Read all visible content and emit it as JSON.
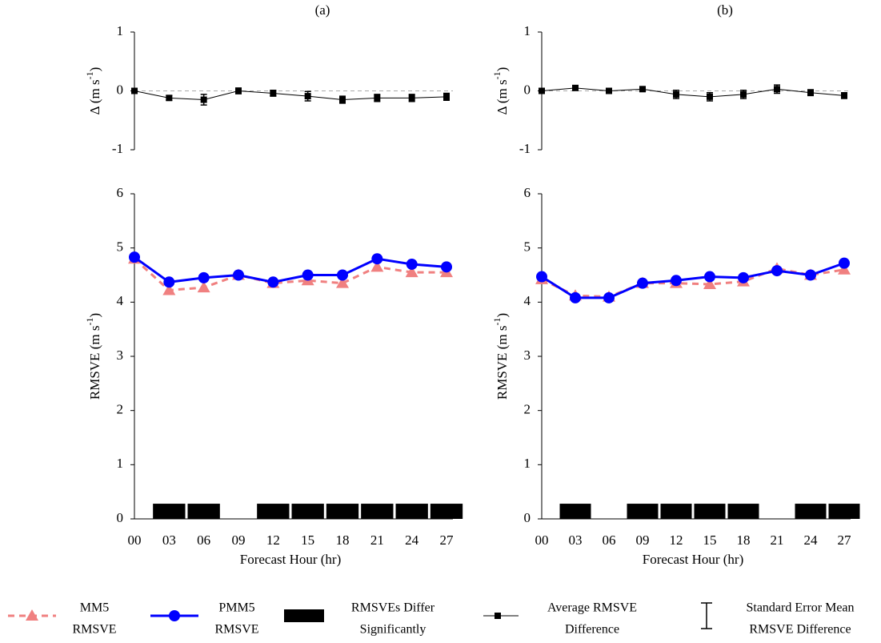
{
  "chart_data": [
    {
      "type": "line",
      "title": "(a)",
      "ylabel": "Δ (m s",
      "ylabel_sup": "-1",
      "ylabel_end": ")",
      "ylim": [
        -1,
        1
      ],
      "yticks": [
        -1,
        0,
        1
      ],
      "zero_line": true,
      "series": [
        {
          "color": "#000000",
          "marker": "square",
          "values": [
            0,
            -0.12,
            -0.15,
            0,
            -0.04,
            -0.09,
            -0.15,
            -0.12,
            -0.12,
            -0.1
          ],
          "errors": [
            0.02,
            0.04,
            0.09,
            0.05,
            0.05,
            0.08,
            0.06,
            0.06,
            0.06,
            0.06
          ]
        }
      ]
    },
    {
      "type": "line",
      "xlabel": "Forecast Hour (hr)",
      "ylabel": "RMSVE (m s",
      "ylabel_sup": "-1",
      "ylabel_end": ")",
      "categories": [
        "00",
        "03",
        "06",
        "09",
        "12",
        "15",
        "18",
        "21",
        "24",
        "27"
      ],
      "ylim": [
        0,
        6
      ],
      "yticks": [
        0,
        1,
        2,
        3,
        4,
        5,
        6
      ],
      "series": [
        {
          "color": "#f08080",
          "marker": "triangle",
          "dash": true,
          "values": [
            4.8,
            4.22,
            4.27,
            4.5,
            4.35,
            4.4,
            4.35,
            4.65,
            4.55,
            4.55
          ]
        },
        {
          "color": "#0000ff",
          "marker": "circle",
          "values": [
            4.83,
            4.37,
            4.45,
            4.5,
            4.37,
            4.5,
            4.5,
            4.8,
            4.7,
            4.65
          ]
        },
        {
          "color": "#000000",
          "marker": "block",
          "values": [
            null,
            0.28,
            0.28,
            null,
            0.28,
            0.28,
            0.28,
            0.28,
            0.28,
            0.28
          ]
        }
      ]
    },
    {
      "type": "line",
      "title": "(b)",
      "ylabel": "Δ (m s",
      "ylabel_sup": "-1",
      "ylabel_end": ")",
      "ylim": [
        -1,
        1
      ],
      "yticks": [
        -1,
        0,
        1
      ],
      "zero_line": true,
      "series": [
        {
          "color": "#000000",
          "marker": "square",
          "values": [
            0,
            0.05,
            0,
            0.03,
            -0.06,
            -0.1,
            -0.06,
            0.03,
            -0.03,
            -0.08
          ],
          "errors": [
            0.02,
            0.04,
            0.04,
            0.04,
            0.07,
            0.07,
            0.07,
            0.07,
            0.05,
            0.05
          ]
        }
      ]
    },
    {
      "type": "line",
      "xlabel": "Forecast Hour (hr)",
      "ylabel": "RMSVE (m s",
      "ylabel_sup": "-1",
      "ylabel_end": ")",
      "categories": [
        "00",
        "03",
        "06",
        "09",
        "12",
        "15",
        "18",
        "21",
        "24",
        "27"
      ],
      "ylim": [
        0,
        6
      ],
      "yticks": [
        0,
        1,
        2,
        3,
        4,
        5,
        6
      ],
      "series": [
        {
          "color": "#f08080",
          "marker": "triangle",
          "dash": true,
          "values": [
            4.42,
            4.12,
            4.1,
            4.35,
            4.35,
            4.33,
            4.38,
            4.62,
            4.5,
            4.6
          ]
        },
        {
          "color": "#0000ff",
          "marker": "circle",
          "values": [
            4.47,
            4.08,
            4.08,
            4.35,
            4.4,
            4.47,
            4.45,
            4.58,
            4.5,
            4.72
          ]
        },
        {
          "color": "#000000",
          "marker": "block",
          "values": [
            null,
            0.28,
            null,
            0.28,
            0.28,
            0.28,
            0.28,
            null,
            0.28,
            0.28
          ]
        }
      ]
    }
  ],
  "legend": [
    {
      "symbol": "triangle",
      "color": "#f08080",
      "label": [
        "MM5",
        "RMSVE"
      ]
    },
    {
      "symbol": "circle",
      "color": "#0000ff",
      "label": [
        "PMM5",
        "RMSVE"
      ]
    },
    {
      "symbol": "block",
      "color": "#000000",
      "label": [
        "RMSVEs Differ",
        "Significantly"
      ]
    },
    {
      "symbol": "square",
      "color": "#000000",
      "label": [
        "Average RMSVE",
        "Difference"
      ]
    },
    {
      "symbol": "ibeam",
      "color": "#000000",
      "label": [
        "Standard Error Mean",
        "RMSVE Difference"
      ]
    }
  ]
}
